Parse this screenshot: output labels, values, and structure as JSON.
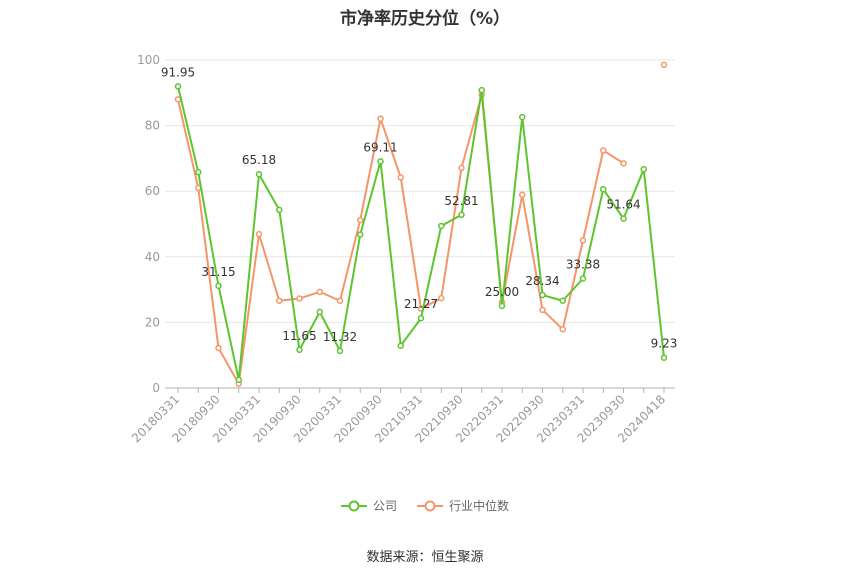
{
  "chart_data": {
    "type": "line",
    "title": "市净率历史分位（%）",
    "xlabel": "",
    "ylabel": "",
    "ylim": [
      0,
      100
    ],
    "yticks": [
      0,
      20,
      40,
      60,
      80,
      100
    ],
    "grid": true,
    "legend_position": "bottom",
    "x": [
      "20180331",
      "20180630",
      "20180930",
      "20181231",
      "20190331",
      "20190630",
      "20190930",
      "20191231",
      "20200331",
      "20200630",
      "20200930",
      "20201231",
      "20210331",
      "20210630",
      "20210930",
      "20211231",
      "20220331",
      "20220630",
      "20220930",
      "20221231",
      "20230331",
      "20230630",
      "20230930",
      "20231231",
      "20240418"
    ],
    "x_tick_labels": [
      "20180331",
      "20180930",
      "20190331",
      "20190930",
      "20200331",
      "20200930",
      "20210331",
      "20210930",
      "20220331",
      "20220930",
      "20230331",
      "20230930",
      "20240418"
    ],
    "series": [
      {
        "name": "公司",
        "color": "#5ec42f",
        "values": [
          91.95,
          65.8,
          31.15,
          2.5,
          65.18,
          54.3,
          11.65,
          23.2,
          11.32,
          46.8,
          69.11,
          12.9,
          21.27,
          49.4,
          52.81,
          90.8,
          25.0,
          82.6,
          28.34,
          26.6,
          33.38,
          60.6,
          51.64,
          66.7,
          9.23
        ]
      },
      {
        "name": "行业中位数",
        "color": "#f5956a",
        "values": [
          88.0,
          61.0,
          12.2,
          1.3,
          46.9,
          26.6,
          27.3,
          29.3,
          26.6,
          51.2,
          82.1,
          64.2,
          24.2,
          27.4,
          67.1,
          89.4,
          26.1,
          58.9,
          23.8,
          17.9,
          45.0,
          72.4,
          68.5,
          null,
          98.5
        ]
      }
    ],
    "data_labels": [
      {
        "index": 0,
        "text": "91.95"
      },
      {
        "index": 2,
        "text": "31.15"
      },
      {
        "index": 4,
        "text": "65.18"
      },
      {
        "index": 6,
        "text": "11.65"
      },
      {
        "index": 8,
        "text": "11.32"
      },
      {
        "index": 10,
        "text": "69.11"
      },
      {
        "index": 12,
        "text": "21.27"
      },
      {
        "index": 14,
        "text": "52.81"
      },
      {
        "index": 16,
        "text": "25.00"
      },
      {
        "index": 18,
        "text": "28.34"
      },
      {
        "index": 20,
        "text": "33.38"
      },
      {
        "index": 22,
        "text": "51.64"
      },
      {
        "index": 24,
        "text": "9.23"
      }
    ]
  },
  "source": "数据来源：恒生聚源"
}
